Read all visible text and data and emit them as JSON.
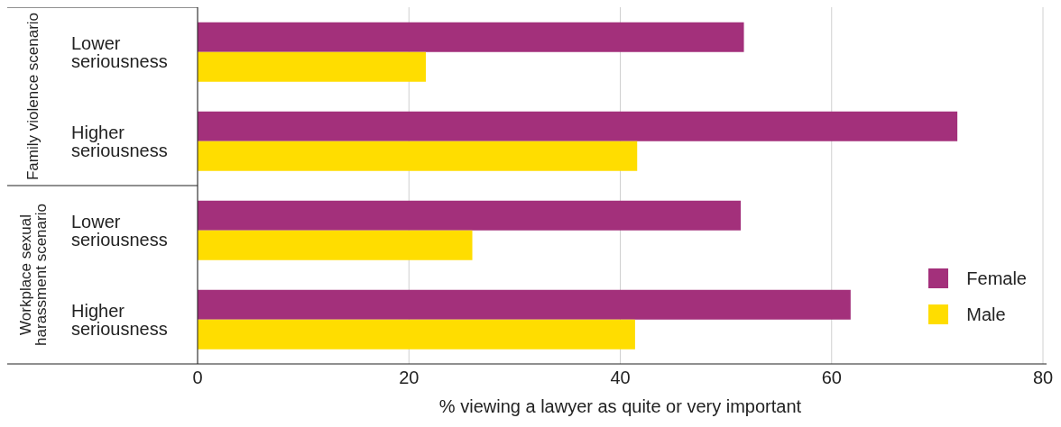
{
  "chart_data": {
    "type": "bar",
    "orientation": "horizontal",
    "xlabel": "% viewing a lawyer as quite or very important",
    "categories": [
      "Lower seriousness",
      "Higher seriousness",
      "Lower seriousness",
      "Higher seriousness"
    ],
    "series": [
      {
        "name": "Female",
        "color": "#a3307b",
        "values": [
          51.7,
          71.9,
          51.4,
          61.8
        ]
      },
      {
        "name": "Male",
        "color": "#ffdd00",
        "values": [
          21.6,
          41.6,
          26.0,
          41.4
        ]
      }
    ],
    "annotations": [
      "Family violence scenario",
      "Workplace sexual harassment scenario"
    ],
    "xlim": [
      0,
      80
    ],
    "xticks": [
      0,
      20,
      40,
      60,
      80
    ],
    "grid": "x",
    "legend": "bottom right"
  }
}
